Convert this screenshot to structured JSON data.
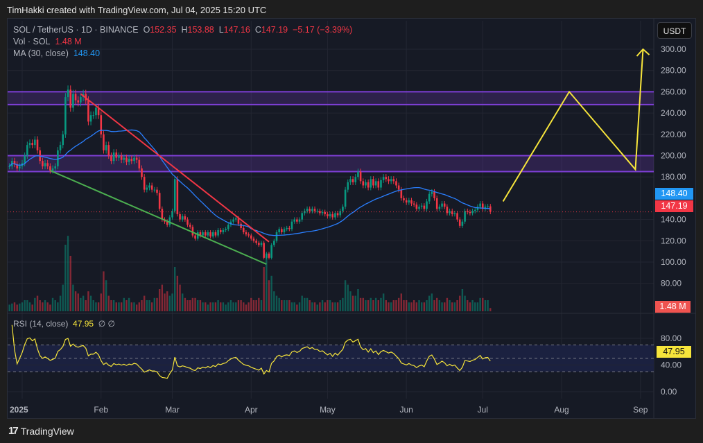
{
  "header": {
    "credit": "TimHakki created with TradingView.com, Jul 04, 2025 15:20 UTC"
  },
  "legend": {
    "symbol": "SOL / TetherUS · 1D · BINANCE",
    "o_label": "O",
    "o": "152.35",
    "h_label": "H",
    "h": "153.88",
    "l_label": "L",
    "l": "147.16",
    "c_label": "C",
    "c": "147.19",
    "change": "−5.17 (−3.39%)",
    "vol_label": "Vol · SOL",
    "vol": "1.48 M",
    "ma_label": "MA (30, close)",
    "ma": "148.40",
    "rsi_label": "RSI (14, close)",
    "rsi": "47.95",
    "rsi_extra": "∅ ∅"
  },
  "currency_button": "USDT",
  "price_tags": {
    "ma": "148.40",
    "close": "147.19",
    "volume": "1.48 M",
    "rsi": "47.95"
  },
  "footer": {
    "brand": "TradingView"
  },
  "colors": {
    "up": "#089981",
    "down": "#f23645",
    "ma": "#2962ff",
    "rsi": "#f7e53b",
    "zone": "#7e3fd6",
    "resistance_line": "#f23645",
    "support_line": "#4caf50",
    "projection": "#f7e53b"
  },
  "chart_data": {
    "type": "candlestick",
    "title": "SOL / TetherUS · 1D · BINANCE",
    "start_date": "2024-12-27",
    "closes": [
      190,
      195,
      192,
      188,
      190,
      193,
      200,
      210,
      212,
      210,
      215,
      205,
      195,
      190,
      193,
      190,
      186,
      188,
      190,
      205,
      210,
      220,
      255,
      262,
      245,
      258,
      252,
      250,
      255,
      258,
      252,
      232,
      238,
      238,
      245,
      238,
      220,
      205,
      210,
      200,
      195,
      203,
      198,
      200,
      196,
      198,
      194,
      197,
      195,
      198,
      196,
      188,
      180,
      168,
      170,
      172,
      168,
      168,
      165,
      150,
      140,
      138,
      135,
      142,
      148,
      178,
      145,
      140,
      143,
      140,
      135,
      133,
      125,
      122,
      128,
      125,
      128,
      125,
      128,
      124,
      128,
      125,
      130,
      128,
      130,
      131,
      135,
      138,
      140,
      141,
      136,
      132,
      128,
      126,
      125,
      122,
      120,
      118,
      116,
      118,
      104,
      108,
      104,
      116,
      120,
      128,
      131,
      128,
      131,
      132,
      131,
      138,
      140,
      138,
      140,
      146,
      148,
      150,
      148,
      150,
      148,
      148,
      146,
      147,
      145,
      143,
      145,
      142,
      146,
      144,
      148,
      152,
      168,
      175,
      178,
      175,
      180,
      185,
      176,
      172,
      175,
      170,
      178,
      172,
      176,
      170,
      177,
      180,
      178,
      176,
      178,
      176,
      172,
      168,
      160,
      158,
      156,
      158,
      155,
      154,
      150,
      152,
      153,
      150,
      157,
      164,
      166,
      160,
      150,
      152,
      155,
      152,
      146,
      148,
      145,
      146,
      140,
      134,
      138,
      148,
      147,
      146,
      148,
      149,
      152,
      155,
      150,
      152,
      152.35,
      147.19
    ],
    "volumes_m": [
      3,
      3.5,
      4,
      3,
      3.5,
      4,
      5,
      5,
      4,
      3,
      6,
      7,
      5,
      4,
      5,
      4,
      3,
      6,
      5,
      4,
      7,
      12,
      30,
      34,
      25,
      12,
      9,
      8,
      6,
      7,
      5,
      9,
      7,
      5,
      4,
      4,
      8,
      18,
      14,
      7,
      5,
      5,
      4,
      4,
      4,
      6,
      5,
      6,
      4,
      4,
      3,
      4,
      5,
      7,
      5,
      5,
      4,
      6,
      6,
      10,
      12,
      8,
      9,
      7,
      8,
      20,
      16,
      12,
      8,
      6,
      5,
      5,
      6,
      6,
      5,
      5,
      4,
      4,
      3,
      4,
      4,
      4,
      5,
      4,
      4,
      3,
      4,
      5,
      4,
      4,
      5,
      5,
      4,
      3,
      4,
      6,
      5,
      5,
      6,
      5,
      20,
      25,
      14,
      16,
      9,
      7,
      6,
      5,
      5,
      5,
      5,
      4,
      4,
      3,
      4,
      7,
      6,
      6,
      5,
      4,
      4,
      3,
      4,
      5,
      4,
      5,
      5,
      4,
      4,
      4,
      5,
      6,
      14,
      12,
      9,
      7,
      7,
      10,
      6,
      6,
      5,
      5,
      6,
      5,
      6,
      5,
      6,
      8,
      5,
      4,
      4,
      5,
      5,
      6,
      8,
      5,
      5,
      4,
      4,
      5,
      4,
      5,
      4,
      4,
      5,
      7,
      8,
      5,
      6,
      5,
      4,
      4,
      6,
      5,
      4,
      4,
      5,
      7,
      10,
      7,
      5,
      4,
      5,
      4,
      4,
      6,
      6,
      5,
      5,
      1.48
    ],
    "ma_period": 30,
    "rsi_period": 14,
    "price_axis": {
      "ticks": [
        "300.00",
        "280.00",
        "260.00",
        "240.00",
        "220.00",
        "200.00",
        "180.00",
        "140.00",
        "120.00",
        "100.00",
        "80.00"
      ],
      "values": [
        300,
        280,
        260,
        240,
        220,
        200,
        180,
        140,
        120,
        100,
        80
      ]
    },
    "rsi_axis": {
      "ticks": [
        "80.00",
        "40.00",
        "0.00"
      ],
      "values": [
        80,
        40,
        0
      ],
      "bands": [
        70,
        50,
        30
      ]
    },
    "time_axis": [
      {
        "label": "2025",
        "date": "2025-01-01"
      },
      {
        "label": "Feb",
        "date": "2025-02-01"
      },
      {
        "label": "Mar",
        "date": "2025-03-01"
      },
      {
        "label": "Apr",
        "date": "2025-04-01"
      },
      {
        "label": "May",
        "date": "2025-05-01"
      },
      {
        "label": "Jun",
        "date": "2025-06-01"
      },
      {
        "label": "Jul",
        "date": "2025-07-01"
      },
      {
        "label": "Aug",
        "date": "2025-08-01"
      },
      {
        "label": "Sep",
        "date": "2025-09-01"
      }
    ],
    "zones": [
      {
        "from": 248,
        "to": 260
      },
      {
        "from": 185,
        "to": 200
      }
    ],
    "trendlines": [
      {
        "name": "resistance",
        "points": [
          [
            "2025-01-24",
            258
          ],
          [
            "2025-04-08",
            119
          ]
        ]
      },
      {
        "name": "support",
        "points": [
          [
            "2025-01-12",
            186
          ],
          [
            "2025-04-07",
            98
          ]
        ]
      }
    ],
    "projection": [
      [
        "2025-07-09",
        157
      ],
      [
        "2025-08-04",
        260
      ],
      [
        "2025-08-30",
        187
      ],
      [
        "2025-09-02",
        300
      ]
    ],
    "ylim": [
      70,
      300
    ]
  }
}
